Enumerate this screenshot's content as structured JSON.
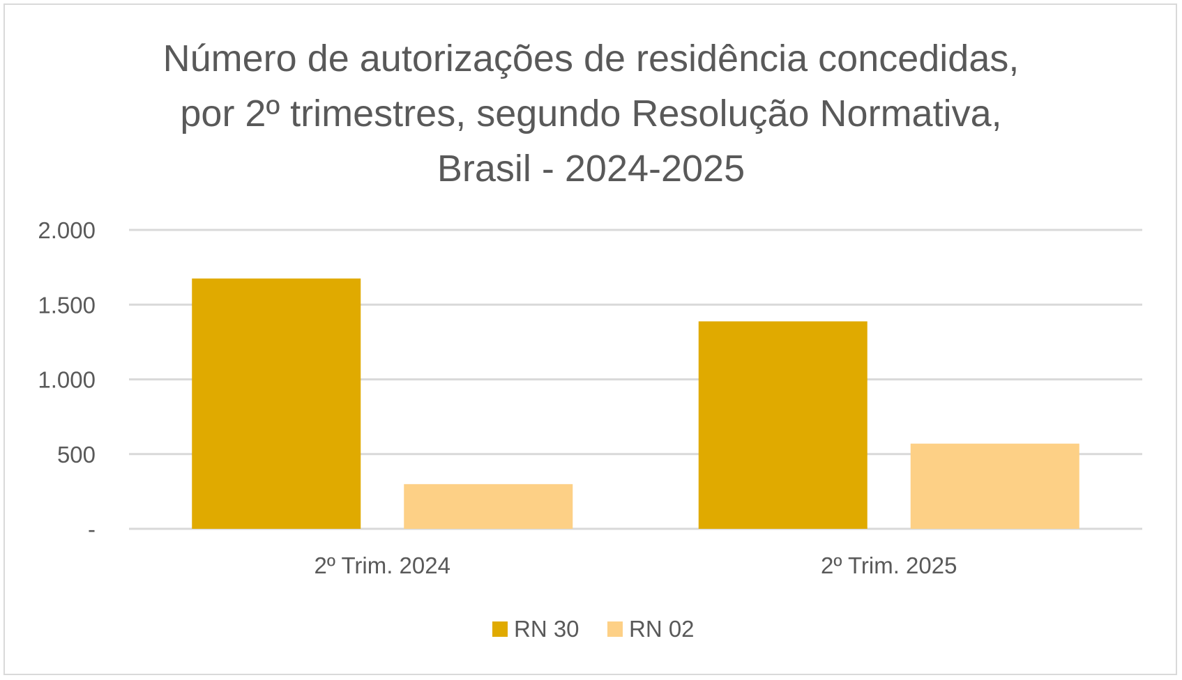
{
  "chart_data": {
    "type": "bar",
    "title": "Número de autorizações de residência concedidas, por 2º trimestres, segundo Resolução Normativa, Brasil - 2024-2025",
    "title_lines": [
      "Número de autorizações de residência concedidas,",
      "por 2º trimestres, segundo Resolução Normativa,",
      "Brasil - 2024-2025"
    ],
    "categories": [
      "2º Trim. 2024",
      "2º Trim. 2025"
    ],
    "series": [
      {
        "name": "RN 30",
        "values": [
          1675,
          1388
        ],
        "color": "#E0AA00"
      },
      {
        "name": "RN 02",
        "values": [
          299,
          570
        ],
        "color": "#FDD086"
      }
    ],
    "ylim": [
      0,
      2000
    ],
    "yticks": [
      0,
      500,
      1000,
      1500,
      2000
    ],
    "ytick_labels": [
      "-",
      "500",
      "1.000",
      "1.500",
      "2.000"
    ],
    "xlabel": "",
    "ylabel": "",
    "grid": true,
    "legend": "bottom"
  }
}
